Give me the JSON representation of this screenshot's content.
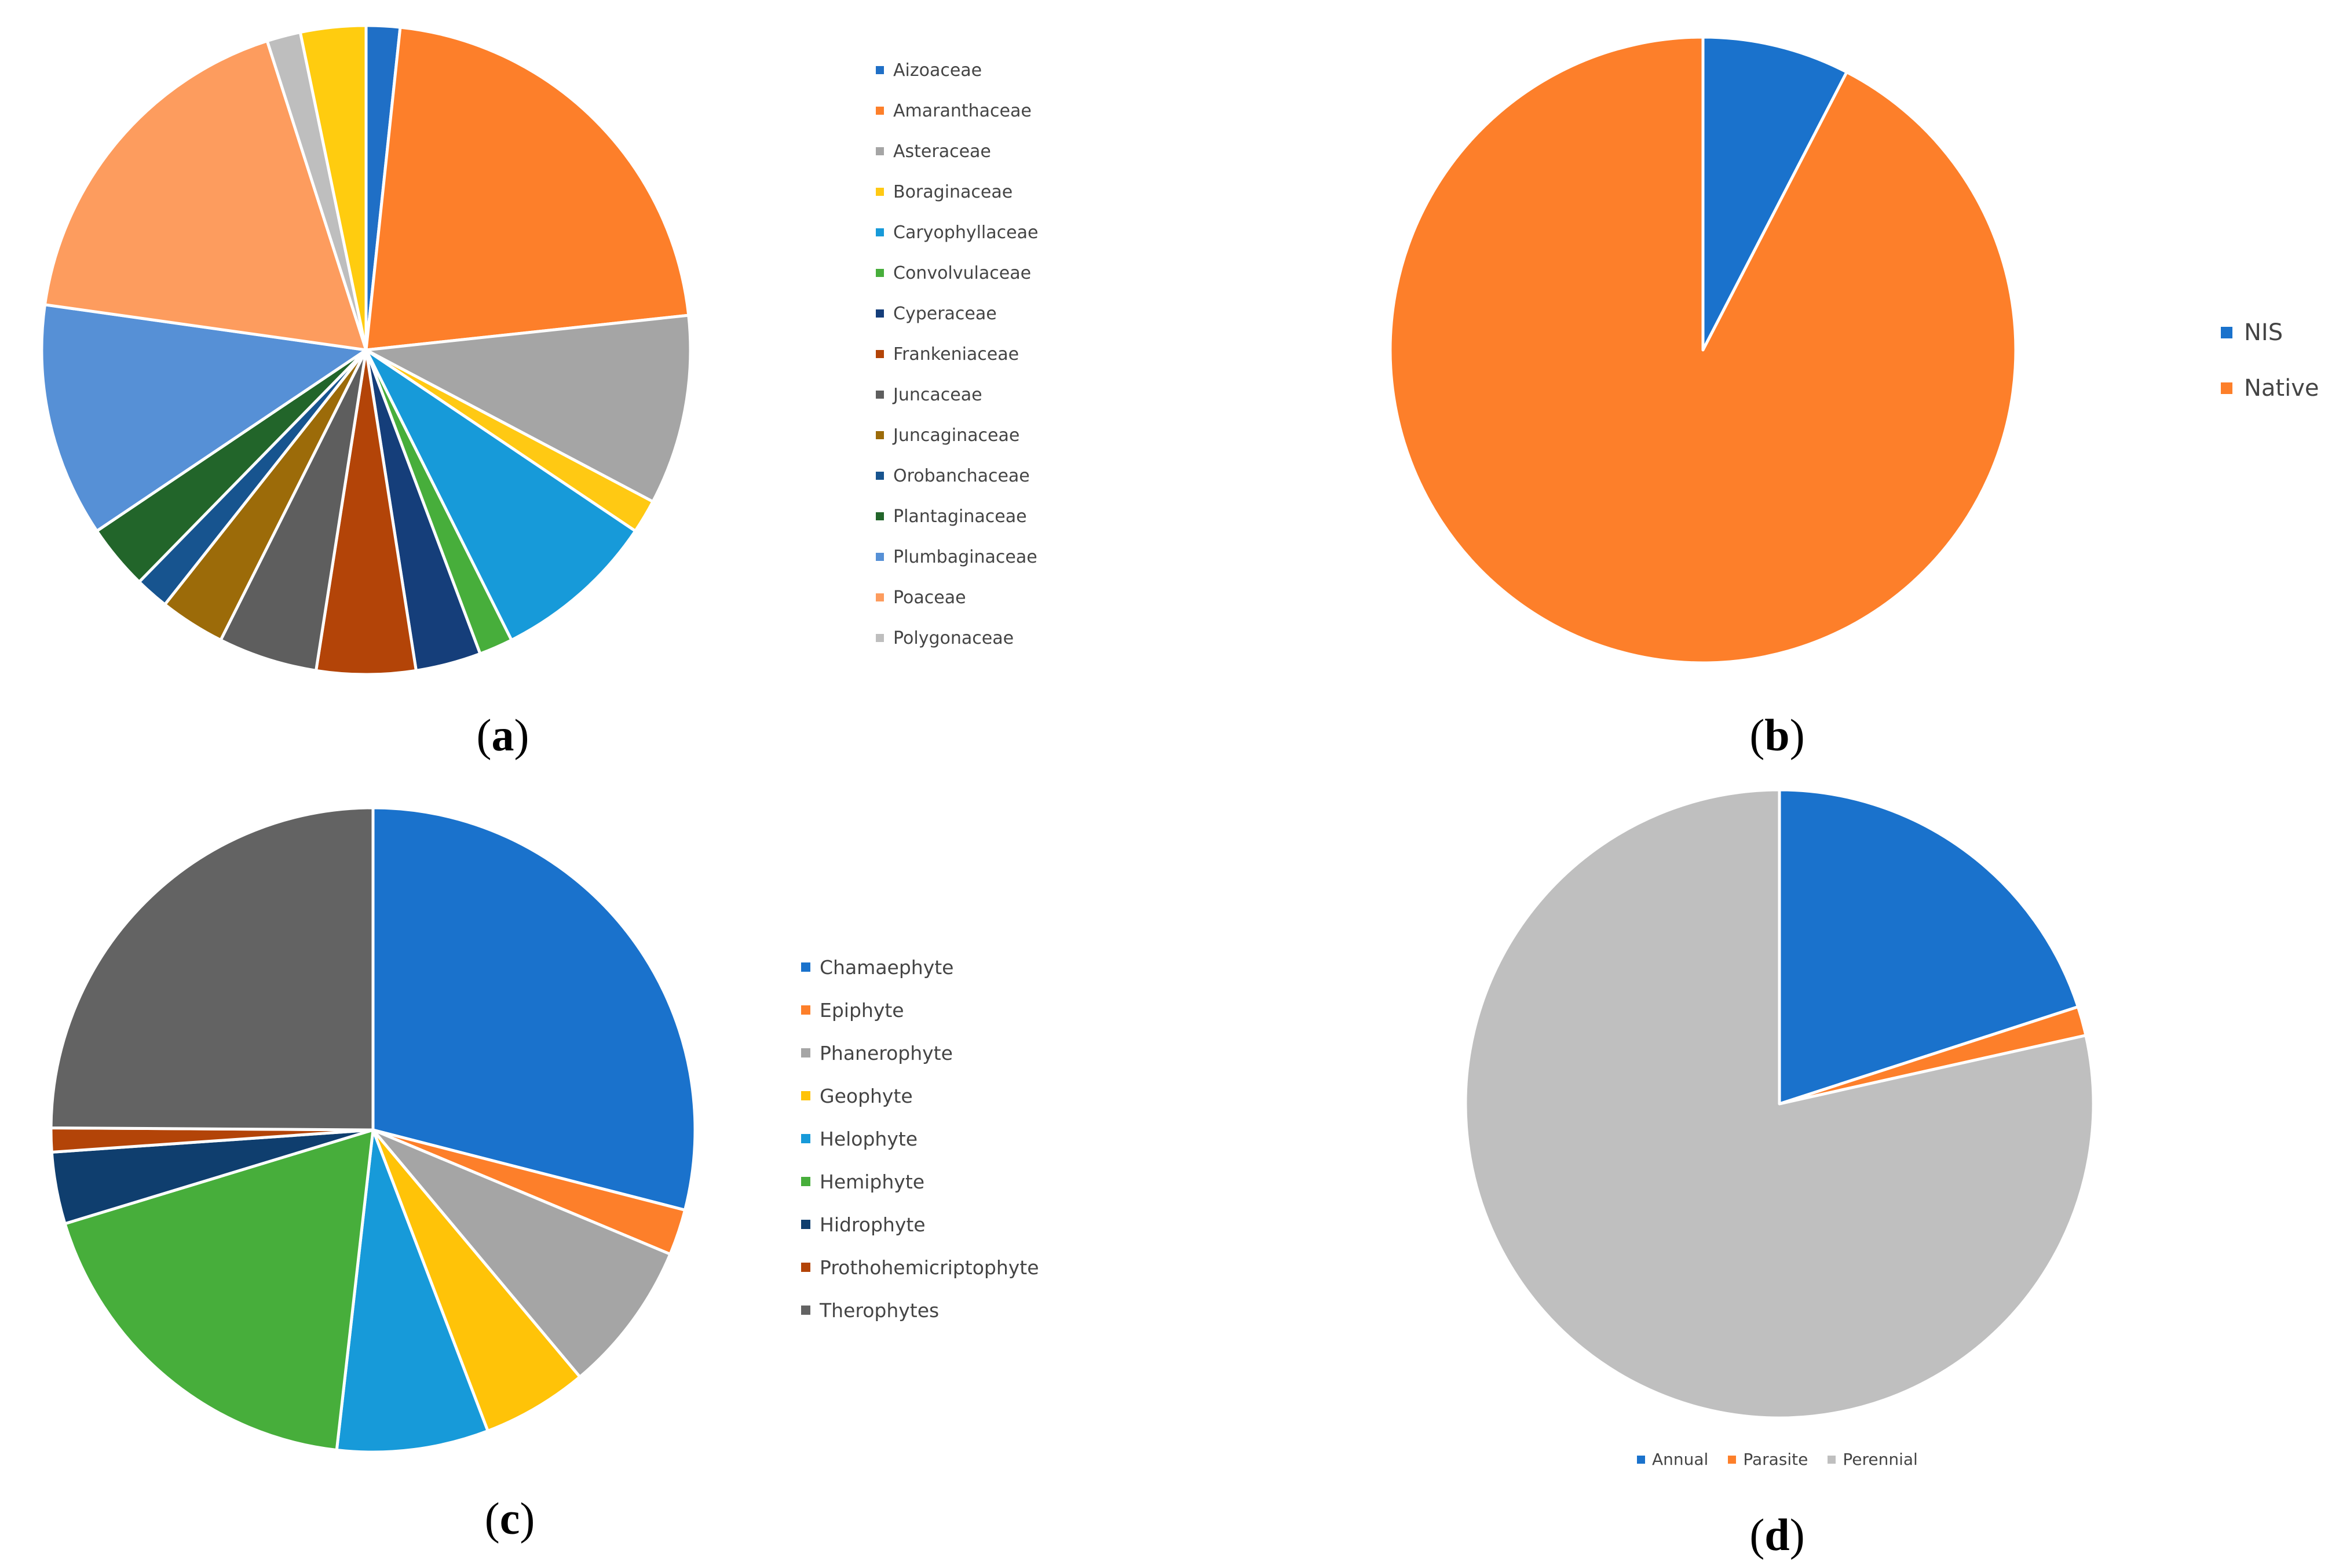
{
  "chart_data": [
    {
      "panel": "a",
      "type": "pie",
      "caption_letter": "a",
      "legend_position": "right",
      "categories": [
        "Aizoaceae",
        "Amaranthaceae",
        "Asteraceae",
        "Boraginaceae",
        "Caryophyllaceae",
        "Convolvulaceae",
        "Cyperaceae",
        "Frankeniaceae",
        "Juncaceae",
        "Juncaginaceae",
        "Orobanchaceae",
        "Plantaginaceae",
        "Plumbaginaceae",
        "Poaceae",
        "Polygonaceae"
      ],
      "values": [
        1.6,
        20.6,
        9.0,
        1.6,
        7.8,
        1.6,
        3.1,
        4.7,
        4.7,
        3.1,
        1.6,
        3.1,
        11.1,
        17.0,
        1.6
      ],
      "extra_slices": [
        {
          "value": 3.1,
          "color": "#FFCC0F"
        }
      ],
      "colors": [
        "#1F6FC6",
        "#FD7F2A",
        "#A5A5A5",
        "#FFC913",
        "#179AD9",
        "#47AE3B",
        "#153E7A",
        "#B34408",
        "#5E5E5E",
        "#9C6B09",
        "#17548F",
        "#22652A",
        "#5690D6",
        "#FD9C5E",
        "#BEBEBE"
      ]
    },
    {
      "panel": "b",
      "type": "pie",
      "caption_letter": "b",
      "legend_position": "right",
      "categories": [
        "NIS",
        "Native"
      ],
      "values": [
        7.6,
        92.4
      ],
      "colors": [
        "#1A72CC",
        "#FD7F2A"
      ]
    },
    {
      "panel": "c",
      "type": "pie",
      "caption_letter": "c",
      "legend_position": "right",
      "categories": [
        "Chamaephyte",
        "Epiphyte",
        "Phanerophyte",
        "Geophyte",
        "Helophyte",
        "Hemiphyte",
        "Hidrophyte",
        "Prothohemicriptophyte",
        "Therophytes"
      ],
      "values": [
        29.0,
        2.3,
        7.6,
        5.3,
        7.6,
        18.5,
        3.6,
        1.2,
        24.9
      ],
      "colors": [
        "#1A72CC",
        "#FD7F2A",
        "#A5A5A5",
        "#FFC308",
        "#179AD9",
        "#47AE3B",
        "#0F3E6E",
        "#B34408",
        "#636363"
      ]
    },
    {
      "panel": "d",
      "type": "pie",
      "caption_letter": "d",
      "legend_position": "bottom",
      "categories": [
        "Annual",
        "Parasite",
        "Perennial"
      ],
      "values": [
        20.0,
        1.5,
        78.5
      ],
      "colors": [
        "#1A72CC",
        "#FD7F2A",
        "#BFBFBF"
      ]
    }
  ]
}
